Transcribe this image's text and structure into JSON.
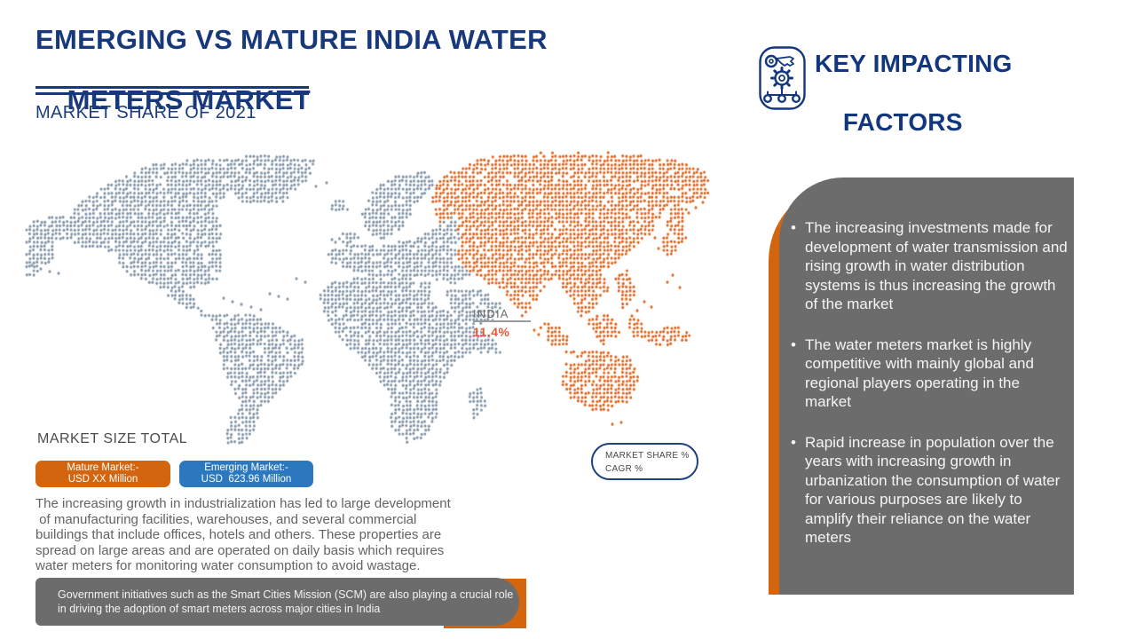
{
  "header": {
    "title_line1": "EMERGING VS MATURE INDIA WATER",
    "title_line2": "METERS MARKET",
    "subtitle": "MARKET SHARE OF 2021",
    "accent_color": "#17397C"
  },
  "key_factors": {
    "heading_line1": "KEY IMPACTING",
    "heading_line2": "FACTORS",
    "items": [
      "The increasing investments made for development of water transmission and rising growth in water distribution systems is thus increasing the growth of the market",
      "The water meters market is highly competitive with mainly global and regional players operating in the market",
      "Rapid increase in population over the years with increasing growth in urbanization the consumption of water for various purposes are likely to amplify their reliance on the water meters"
    ],
    "panel_color": "#6C6C6C",
    "accent_color": "#D4650F"
  },
  "map": {
    "india_label": "INDIA",
    "india_value": "11.4%",
    "colors": {
      "rest_of_world": "#7E91A3",
      "asia_region": "#DE6118"
    }
  },
  "market_size": {
    "label": "MARKET SIZE TOTAL",
    "mature_line1": "Mature Market:-",
    "mature_line2": "USD XX Million",
    "mature_color": "#D4650F",
    "emerging_line1": "Emerging Market:-",
    "emerging_line2": "USD  623.96 Million",
    "emerging_color": "#2B78BE"
  },
  "legend_pill": {
    "line1": "MARKET SHARE %",
    "line2": "CAGR %"
  },
  "body_paragraph": {
    "lines": [
      "The increasing growth in industrialization has led to large development",
      " of manufacturing facilities, warehouses, and several commercial",
      "buildings that include offices, hotels and others. These properties are",
      "spread on large areas and are operated on daily basis which requires",
      "water meters for monitoring water consumption to avoid wastage."
    ]
  },
  "footnote": {
    "line1": "Government initiatives such as the Smart Cities Mission (SCM) are also playing a crucial role",
    "line2": "in driving the adoption of smart meters across major cities in India"
  },
  "chart_data": {
    "type": "map",
    "title": "Emerging vs Mature India Water Meters Market",
    "subtitle": "Market Share of 2021",
    "highlighted_region": "Asia (including India)",
    "regions": [
      {
        "name": "India",
        "market_share_pct": 11.4
      }
    ],
    "series": [
      {
        "name": "Mature Market",
        "value": "USD XX Million"
      },
      {
        "name": "Emerging Market",
        "value": "USD 623.96 Million"
      }
    ],
    "legend_position": "bottom-left"
  }
}
